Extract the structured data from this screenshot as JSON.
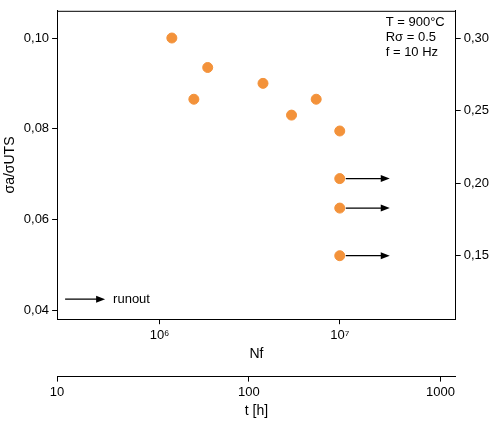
{
  "chart_data": {
    "type": "scatter",
    "annotations": [
      "T = 900°C",
      "Rσ = 0.5",
      "f = 10 Hz"
    ],
    "x_label": "Nf",
    "y_label": "σa/σUTS",
    "x2_label": "t [h]",
    "log": "x",
    "grid": false,
    "legend": "lower left",
    "xlim": [
      270000,
      44000000
    ],
    "xticks": [
      {
        "value": 1000000,
        "label": "10⁶"
      },
      {
        "value": 10000000,
        "label": "10⁷"
      }
    ],
    "x2lim": [
      10,
      1200
    ],
    "x2ticks": [
      10,
      100,
      1000
    ],
    "ylim": [
      0.038,
      0.106
    ],
    "yticks": [
      {
        "value": 0.04,
        "label": "0,04"
      },
      {
        "value": 0.06,
        "label": "0,06"
      },
      {
        "value": 0.08,
        "label": "0,08"
      },
      {
        "value": 0.1,
        "label": "0,10"
      }
    ],
    "y2lim": [
      0.106,
      0.319
    ],
    "y2ticks": [
      {
        "value": 0.15,
        "label": "0,15"
      },
      {
        "value": 0.2,
        "label": "0,20"
      },
      {
        "value": 0.25,
        "label": "0,25"
      },
      {
        "value": 0.3,
        "label": "0,30"
      }
    ],
    "series": [
      {
        "color": "#f3923a",
        "marker": "circle",
        "x": [
          1170000,
          1550000,
          1850000,
          3750000,
          5400000,
          7400000,
          10000000
        ],
        "values": [
          0.1,
          0.0865,
          0.0935,
          0.09,
          0.083,
          0.0865,
          0.0795
        ]
      },
      {
        "name": "runout",
        "color": "#f3923a",
        "marker": "circle-arrow",
        "x": [
          10000000,
          10000000,
          10000000
        ],
        "values": [
          0.069,
          0.0625,
          0.052
        ]
      }
    ]
  }
}
